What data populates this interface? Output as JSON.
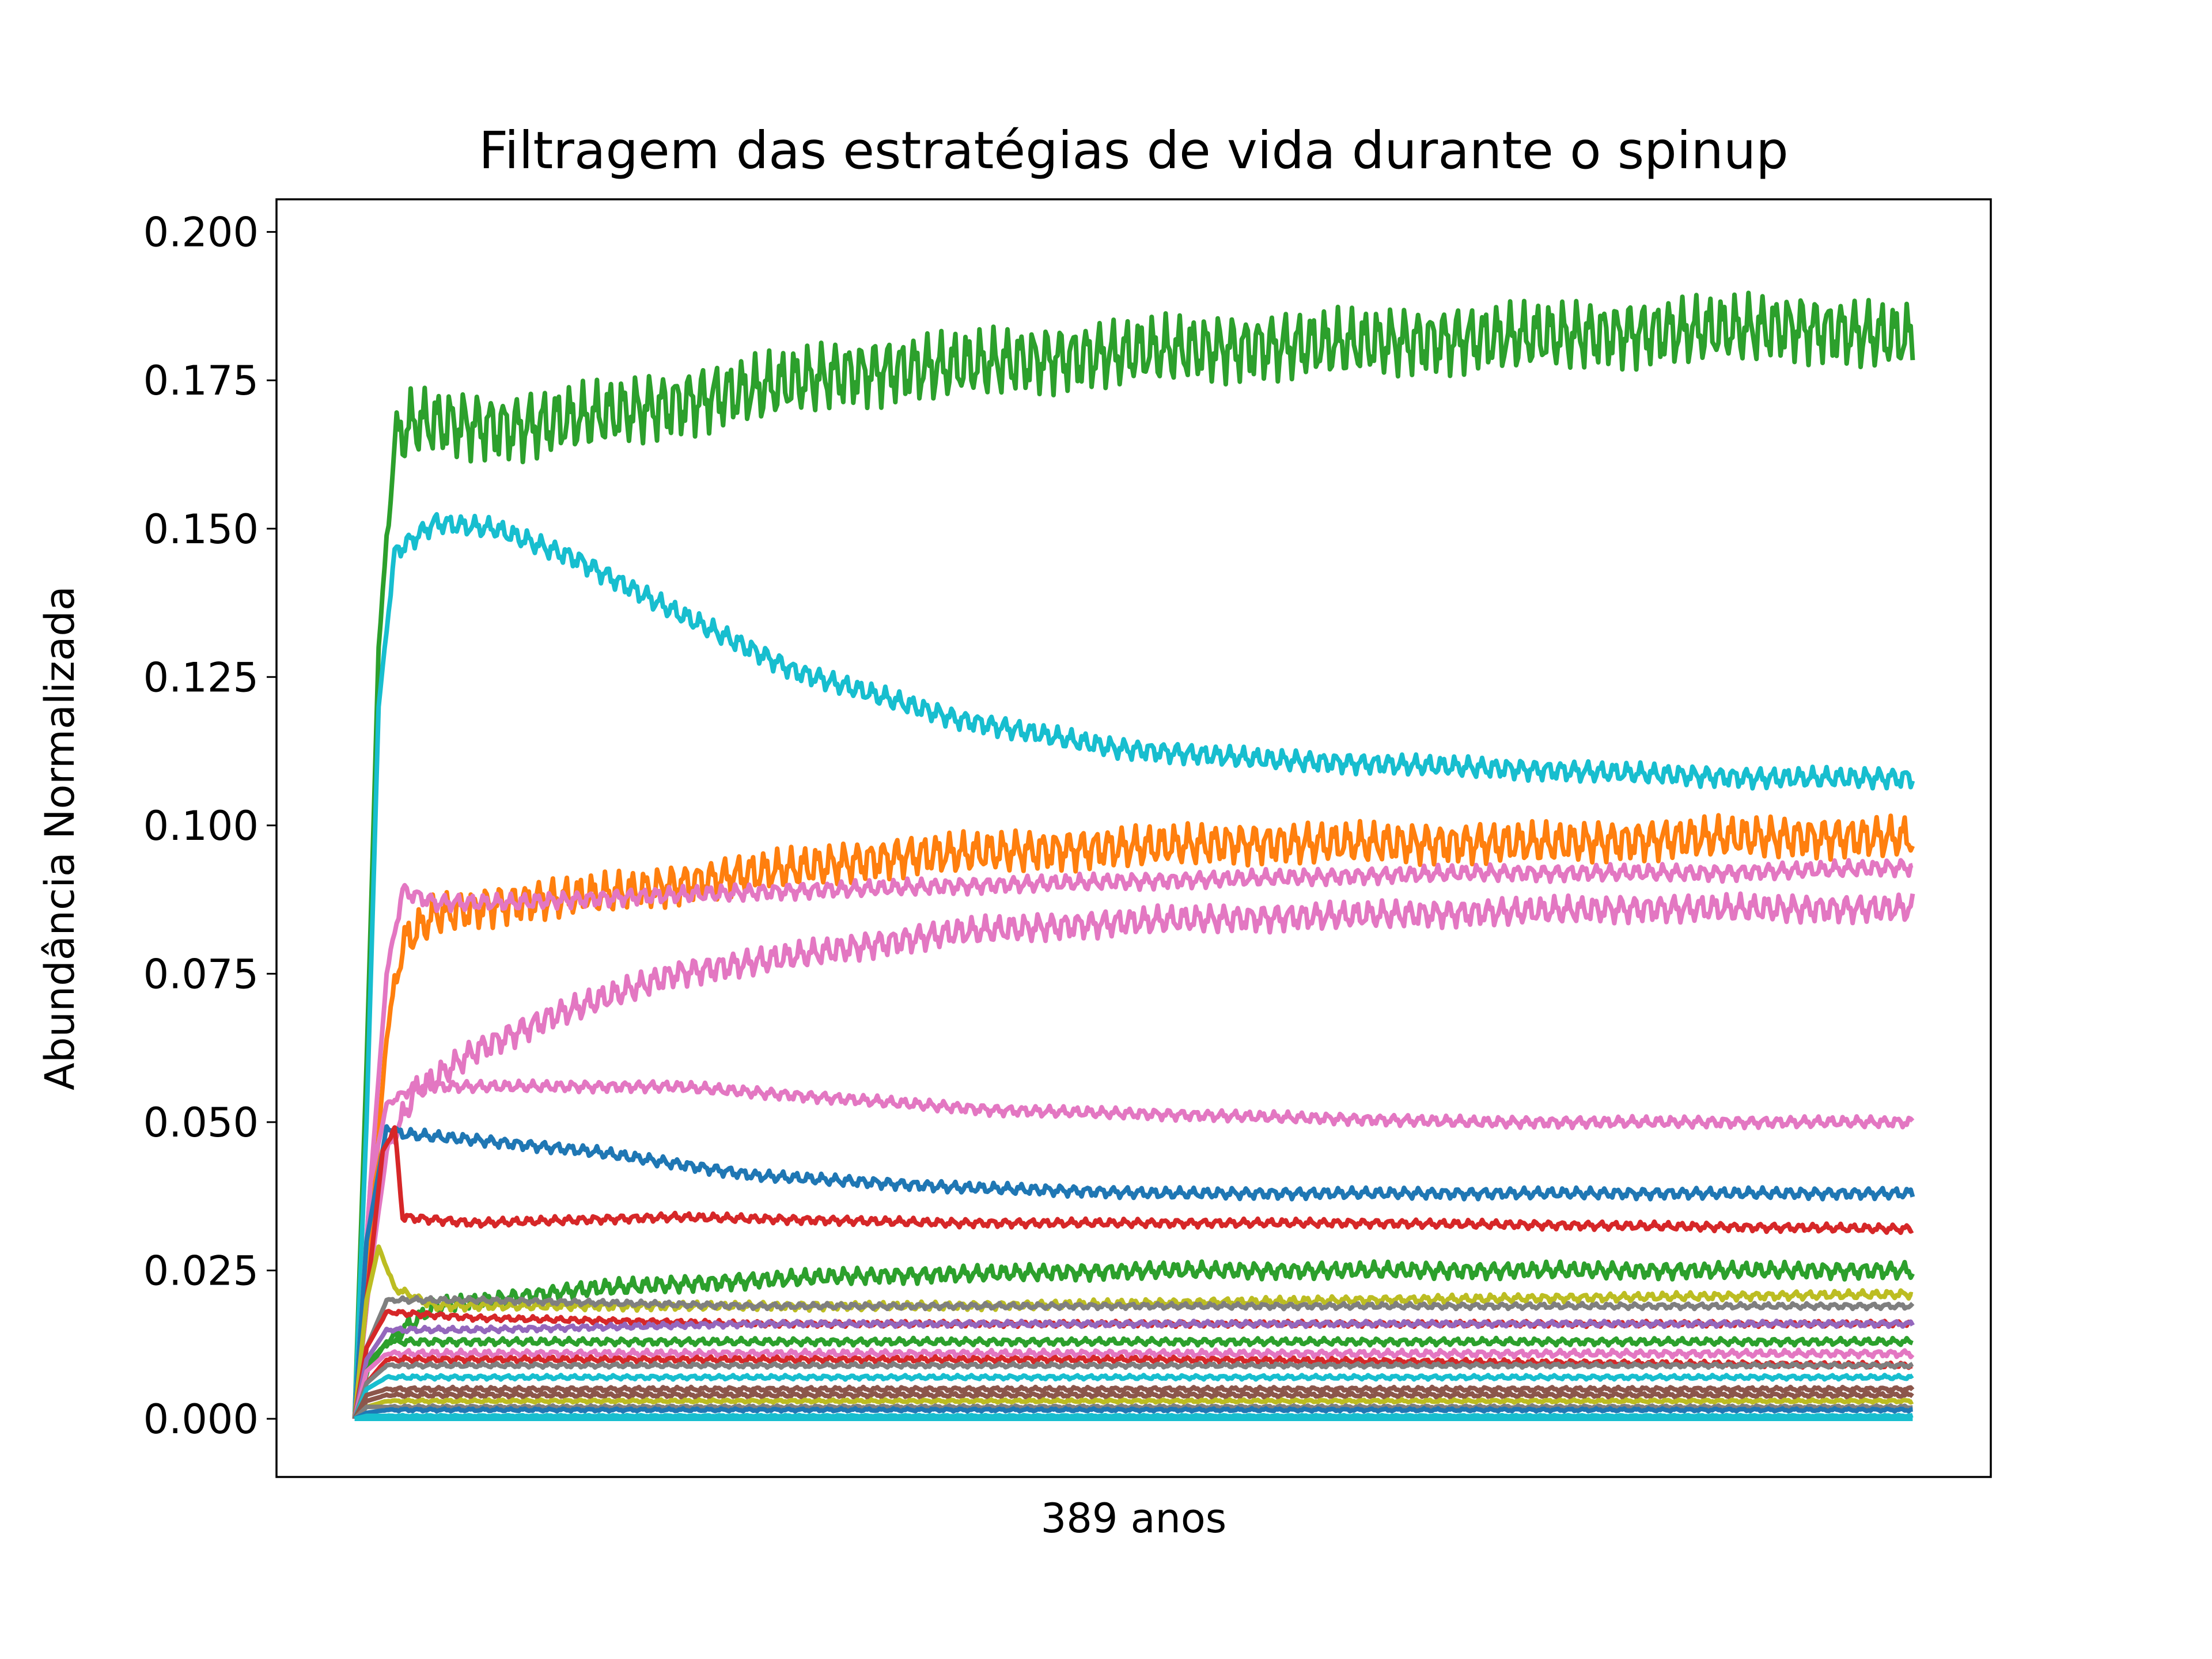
{
  "chart_data": {
    "type": "line",
    "title": "Filtragem das estratégias de vida durante o spinup",
    "xlabel": "389 anos",
    "ylabel": "Abundância Normalizada",
    "ylim": [
      -0.0098,
      0.2055
    ],
    "y_ticks": [
      "0.000",
      "0.025",
      "0.050",
      "0.075",
      "0.100",
      "0.125",
      "0.150",
      "0.175",
      "0.200"
    ],
    "x_ticks": [],
    "xlim": [
      -19.5,
      408.5
    ],
    "grid": false,
    "legend": "none",
    "x_note": "years of spinup, 0 to 389 (no tick labels shown)",
    "series": [
      {
        "color": "#2ca02c",
        "amplitude": 0.005,
        "values": [
          [
            0,
            0
          ],
          [
            3,
            0.06
          ],
          [
            6,
            0.13
          ],
          [
            10,
            0.165
          ],
          [
            15,
            0.168
          ],
          [
            40,
            0.167
          ],
          [
            80,
            0.171
          ],
          [
            120,
            0.176
          ],
          [
            160,
            0.178
          ],
          [
            200,
            0.18
          ],
          [
            240,
            0.181
          ],
          [
            280,
            0.182
          ],
          [
            320,
            0.183
          ],
          [
            360,
            0.184
          ],
          [
            389,
            0.182
          ]
        ]
      },
      {
        "color": "#17becf",
        "amplitude": 0.0015,
        "values": [
          [
            0,
            0
          ],
          [
            3,
            0.05
          ],
          [
            6,
            0.12
          ],
          [
            10,
            0.146
          ],
          [
            20,
            0.151
          ],
          [
            35,
            0.15
          ],
          [
            55,
            0.145
          ],
          [
            80,
            0.136
          ],
          [
            110,
            0.126
          ],
          [
            150,
            0.118
          ],
          [
            190,
            0.113
          ],
          [
            230,
            0.111
          ],
          [
            270,
            0.11
          ],
          [
            310,
            0.109
          ],
          [
            350,
            0.108
          ],
          [
            389,
            0.108
          ]
        ]
      },
      {
        "color": "#ff7f0e",
        "amplitude": 0.003,
        "values": [
          [
            0,
            0
          ],
          [
            4,
            0.03
          ],
          [
            8,
            0.065
          ],
          [
            12,
            0.08
          ],
          [
            20,
            0.085
          ],
          [
            40,
            0.087
          ],
          [
            70,
            0.089
          ],
          [
            100,
            0.092
          ],
          [
            140,
            0.095
          ],
          [
            180,
            0.096
          ],
          [
            220,
            0.097
          ],
          [
            260,
            0.097
          ],
          [
            300,
            0.097
          ],
          [
            340,
            0.098
          ],
          [
            389,
            0.098
          ]
        ]
      },
      {
        "color": "#e377c2",
        "amplitude": 0.0012,
        "values": [
          [
            0,
            0
          ],
          [
            4,
            0.04
          ],
          [
            8,
            0.075
          ],
          [
            12,
            0.089
          ],
          [
            20,
            0.087
          ],
          [
            40,
            0.087
          ],
          [
            70,
            0.088
          ],
          [
            110,
            0.089
          ],
          [
            160,
            0.09
          ],
          [
            220,
            0.091
          ],
          [
            280,
            0.092
          ],
          [
            340,
            0.092
          ],
          [
            389,
            0.093
          ]
        ]
      },
      {
        "color": "#e377c2",
        "amplitude": 0.002,
        "values": [
          [
            0,
            0
          ],
          [
            4,
            0.025
          ],
          [
            8,
            0.045
          ],
          [
            15,
            0.055
          ],
          [
            30,
            0.062
          ],
          [
            50,
            0.068
          ],
          [
            80,
            0.075
          ],
          [
            110,
            0.078
          ],
          [
            150,
            0.082
          ],
          [
            200,
            0.084
          ],
          [
            260,
            0.085
          ],
          [
            320,
            0.086
          ],
          [
            389,
            0.086
          ]
        ]
      },
      {
        "color": "#e377c2",
        "amplitude": 0.0008,
        "values": [
          [
            0,
            0
          ],
          [
            4,
            0.04
          ],
          [
            8,
            0.053
          ],
          [
            15,
            0.056
          ],
          [
            40,
            0.056
          ],
          [
            80,
            0.056
          ],
          [
            120,
            0.054
          ],
          [
            160,
            0.052
          ],
          [
            220,
            0.051
          ],
          [
            280,
            0.05
          ],
          [
            340,
            0.05
          ],
          [
            389,
            0.05
          ]
        ]
      },
      {
        "color": "#1f77b4",
        "amplitude": 0.0008,
        "values": [
          [
            0,
            0
          ],
          [
            3,
            0.03
          ],
          [
            8,
            0.049
          ],
          [
            12,
            0.048
          ],
          [
            30,
            0.047
          ],
          [
            60,
            0.045
          ],
          [
            100,
            0.041
          ],
          [
            150,
            0.039
          ],
          [
            200,
            0.038
          ],
          [
            260,
            0.038
          ],
          [
            320,
            0.038
          ],
          [
            389,
            0.038
          ]
        ]
      },
      {
        "color": "#d62728",
        "amplitude": 0.0006,
        "values": [
          [
            0,
            0
          ],
          [
            3,
            0.02
          ],
          [
            7,
            0.045
          ],
          [
            10,
            0.049
          ],
          [
            12,
            0.034
          ],
          [
            30,
            0.033
          ],
          [
            80,
            0.034
          ],
          [
            150,
            0.033
          ],
          [
            250,
            0.033
          ],
          [
            389,
            0.032
          ]
        ]
      },
      {
        "color": "#2ca02c",
        "amplitude": 0.0012,
        "values": [
          [
            0,
            0
          ],
          [
            4,
            0.01
          ],
          [
            10,
            0.014
          ],
          [
            20,
            0.019
          ],
          [
            60,
            0.022
          ],
          [
            120,
            0.024
          ],
          [
            200,
            0.025
          ],
          [
            300,
            0.025
          ],
          [
            389,
            0.025
          ]
        ]
      },
      {
        "color": "#bcbd22",
        "amplitude": 0.0006,
        "values": [
          [
            0,
            0
          ],
          [
            3,
            0.02
          ],
          [
            6,
            0.029
          ],
          [
            10,
            0.022
          ],
          [
            20,
            0.019
          ],
          [
            60,
            0.019
          ],
          [
            150,
            0.019
          ],
          [
            250,
            0.02
          ],
          [
            389,
            0.021
          ]
        ]
      },
      {
        "color": "#7f7f7f",
        "amplitude": 0.0004,
        "values": [
          [
            0,
            0
          ],
          [
            3,
            0.012
          ],
          [
            8,
            0.02
          ],
          [
            30,
            0.02
          ],
          [
            100,
            0.019
          ],
          [
            250,
            0.019
          ],
          [
            389,
            0.019
          ]
        ]
      },
      {
        "color": "#d62728",
        "amplitude": 0.0004,
        "values": [
          [
            0,
            0
          ],
          [
            3,
            0.012
          ],
          [
            8,
            0.018
          ],
          [
            30,
            0.017
          ],
          [
            100,
            0.016
          ],
          [
            250,
            0.016
          ],
          [
            389,
            0.016
          ]
        ]
      },
      {
        "color": "#9467bd",
        "amplitude": 0.0004,
        "values": [
          [
            0,
            0
          ],
          [
            3,
            0.01
          ],
          [
            8,
            0.015
          ],
          [
            30,
            0.015
          ],
          [
            100,
            0.016
          ],
          [
            250,
            0.016
          ],
          [
            389,
            0.016
          ]
        ]
      },
      {
        "color": "#2ca02c",
        "amplitude": 0.0005,
        "values": [
          [
            0,
            0
          ],
          [
            3,
            0.008
          ],
          [
            8,
            0.013
          ],
          [
            30,
            0.013
          ],
          [
            100,
            0.013
          ],
          [
            250,
            0.013
          ],
          [
            389,
            0.013
          ]
        ]
      },
      {
        "color": "#e377c2",
        "amplitude": 0.0005,
        "values": [
          [
            0,
            0
          ],
          [
            3,
            0.008
          ],
          [
            8,
            0.011
          ],
          [
            50,
            0.011
          ],
          [
            200,
            0.011
          ],
          [
            389,
            0.011
          ]
        ]
      },
      {
        "color": "#d62728",
        "amplitude": 0.0004,
        "values": [
          [
            0,
            0
          ],
          [
            3,
            0.006
          ],
          [
            8,
            0.01
          ],
          [
            50,
            0.01
          ],
          [
            200,
            0.01
          ],
          [
            389,
            0.009
          ]
        ]
      },
      {
        "color": "#7f7f7f",
        "amplitude": 0.0003,
        "values": [
          [
            0,
            0
          ],
          [
            3,
            0.006
          ],
          [
            8,
            0.009
          ],
          [
            50,
            0.009
          ],
          [
            200,
            0.009
          ],
          [
            389,
            0.009
          ]
        ]
      },
      {
        "color": "#17becf",
        "amplitude": 0.0003,
        "values": [
          [
            0,
            0
          ],
          [
            3,
            0.005
          ],
          [
            8,
            0.007
          ],
          [
            50,
            0.007
          ],
          [
            200,
            0.007
          ],
          [
            389,
            0.007
          ]
        ]
      },
      {
        "color": "#8c564b",
        "amplitude": 0.0003,
        "values": [
          [
            0,
            0
          ],
          [
            3,
            0.004
          ],
          [
            8,
            0.005
          ],
          [
            50,
            0.005
          ],
          [
            200,
            0.005
          ],
          [
            389,
            0.005
          ]
        ]
      },
      {
        "color": "#8c564b",
        "amplitude": 0.0003,
        "values": [
          [
            0,
            0
          ],
          [
            3,
            0.003
          ],
          [
            8,
            0.004
          ],
          [
            50,
            0.004
          ],
          [
            200,
            0.004
          ],
          [
            389,
            0.004
          ]
        ]
      },
      {
        "color": "#bcbd22",
        "amplitude": 0.0002,
        "values": [
          [
            0,
            0
          ],
          [
            3,
            0.002
          ],
          [
            8,
            0.003
          ],
          [
            50,
            0.003
          ],
          [
            200,
            0.003
          ],
          [
            389,
            0.003
          ]
        ]
      },
      {
        "color": "#7f7f7f",
        "amplitude": 0.0002,
        "values": [
          [
            0,
            0
          ],
          [
            3,
            0.002
          ],
          [
            8,
            0.002
          ],
          [
            50,
            0.002
          ],
          [
            200,
            0.002
          ],
          [
            389,
            0.002
          ]
        ]
      },
      {
        "color": "#1f77b4",
        "amplitude": 0.0002,
        "values": [
          [
            0,
            0
          ],
          [
            3,
            0.001
          ],
          [
            8,
            0.0015
          ],
          [
            50,
            0.0015
          ],
          [
            200,
            0.0015
          ],
          [
            389,
            0.0015
          ]
        ]
      },
      {
        "color": "#17becf",
        "amplitude": 0.0001,
        "values": [
          [
            0,
            0
          ],
          [
            3,
            0.0005
          ],
          [
            8,
            0.0005
          ],
          [
            200,
            0.0005
          ],
          [
            389,
            0.0005
          ]
        ]
      },
      {
        "color": "#17becf",
        "amplitude": 0.0,
        "values": [
          [
            0,
            0
          ],
          [
            389,
            0
          ]
        ]
      }
    ]
  }
}
